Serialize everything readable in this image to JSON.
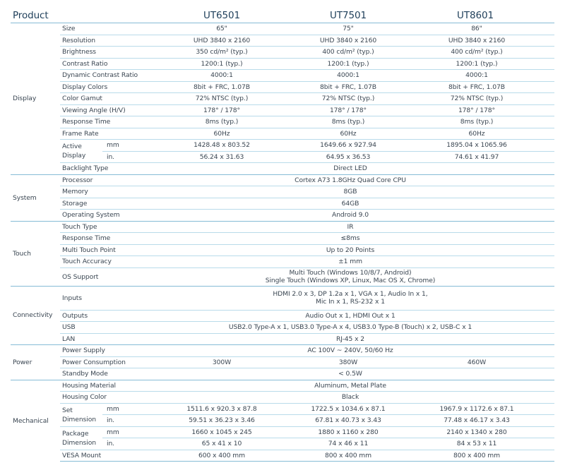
{
  "header": {
    "product_label": "Product",
    "models": [
      "UT6501",
      "UT7501",
      "UT8601"
    ]
  },
  "sections": [
    {
      "name": "Display",
      "rows": [
        {
          "label": "Size",
          "values": [
            "65\"",
            "75\"",
            "86\""
          ]
        },
        {
          "label": "Resolution",
          "values": [
            "UHD 3840 x 2160",
            "UHD 3840 x 2160",
            "UHD 3840 x 2160"
          ]
        },
        {
          "label": "Brightness",
          "values": [
            "350 cd/m² (typ.)",
            "400 cd/m² (typ.)",
            "400 cd/m² (typ.)"
          ]
        },
        {
          "label": "Contrast Ratio",
          "values": [
            "1200:1 (typ.)",
            "1200:1 (typ.)",
            "1200:1 (typ.)"
          ]
        },
        {
          "label": "Dynamic Contrast Ratio",
          "values": [
            "4000:1",
            "4000:1",
            "4000:1"
          ]
        },
        {
          "label": "Display Colors",
          "values": [
            "8bit + FRC, 1.07B",
            "8bit + FRC, 1.07B",
            "8bit + FRC, 1.07B"
          ]
        },
        {
          "label": "Color Gamut",
          "values": [
            "72% NTSC (typ.)",
            "72% NTSC (typ.)",
            "72% NTSC (typ.)"
          ]
        },
        {
          "label": "Viewing Angle (H/V)",
          "values": [
            "178° / 178°",
            "178° / 178°",
            "178° / 178°"
          ]
        },
        {
          "label": "Response Time",
          "values": [
            "8ms (typ.)",
            "8ms (typ.)",
            "8ms (typ.)"
          ]
        },
        {
          "label": "Frame Rate",
          "values": [
            "60Hz",
            "60Hz",
            "60Hz"
          ]
        },
        {
          "label": "Active Display",
          "subs": [
            {
              "unit": "mm",
              "values": [
                "1428.48 x 803.52",
                "1649.66 x 927.94",
                "1895.04 x 1065.96"
              ]
            },
            {
              "unit": "in.",
              "values": [
                "56.24 x 31.63",
                "64.95 x 36.53",
                "74.61 x 41.97"
              ]
            }
          ]
        },
        {
          "label": "Backlight Type",
          "values": [
            "Direct LED"
          ]
        }
      ]
    },
    {
      "name": "System",
      "rows": [
        {
          "label": "Processor",
          "values": [
            "Cortex A73 1.8GHz Quad Core CPU"
          ]
        },
        {
          "label": "Memory",
          "values": [
            "8GB"
          ]
        },
        {
          "label": "Storage",
          "values": [
            "64GB"
          ]
        },
        {
          "label": "Operating System",
          "values": [
            "Android 9.0"
          ]
        }
      ]
    },
    {
      "name": "Touch",
      "rows": [
        {
          "label": "Touch Type",
          "values": [
            "IR"
          ]
        },
        {
          "label": "Response Time",
          "values": [
            "≤8ms"
          ]
        },
        {
          "label": "Multi Touch Point",
          "values": [
            "Up to 20 Points"
          ]
        },
        {
          "label": "Touch Accuracy",
          "values": [
            "±1 mm"
          ]
        },
        {
          "label": "OS Support",
          "lines": 2,
          "values": [
            "Multi Touch (Windows 10/8/7, Android)\nSingle Touch (Windows XP, Linux, Mac OS X, Chrome)"
          ]
        }
      ]
    },
    {
      "name": "Connectivity",
      "rows": [
        {
          "label": "Inputs",
          "lines": 3,
          "values": [
            "HDMI 2.0 x 3, DP 1.2a x 1, VGA x 1, Audio In x 1,\nMic In x 1, RS-232 x 1"
          ]
        },
        {
          "label": "Outputs",
          "values": [
            "Audio Out x 1, HDMI Out x 1"
          ]
        },
        {
          "label": "USB",
          "values": [
            "USB2.0 Type-A x 1, USB3.0 Type-A x 4, USB3.0 Type-B (Touch) x 2, USB-C x 1"
          ]
        },
        {
          "label": "LAN",
          "values": [
            "RJ-45 x 2"
          ]
        }
      ]
    },
    {
      "name": "Power",
      "rows": [
        {
          "label": "Power Supply",
          "values": [
            "AC 100V ~ 240V, 50/60 Hz"
          ]
        },
        {
          "label": "Power Consumption",
          "values": [
            "300W",
            "380W",
            "460W"
          ]
        },
        {
          "label": "Standby Mode",
          "values": [
            "< 0.5W"
          ]
        }
      ]
    },
    {
      "name": "Mechanical",
      "rows": [
        {
          "label": "Housing Material",
          "values": [
            "Aluminum, Metal Plate"
          ]
        },
        {
          "label": "Housing Color",
          "values": [
            "Black"
          ]
        },
        {
          "label": "Set Dimension",
          "subs": [
            {
              "unit": "mm",
              "values": [
                "1511.6 x 920.3 x 87.8",
                "1722.5 x 1034.6 x 87.1",
                "1967.9 x 1172.6 x 87.1"
              ]
            },
            {
              "unit": "in.",
              "values": [
                "59.51 x 36.23 x 3.46",
                "67.81 x 40.73 x 3.43",
                "77.48 x 46.17 x 3.43"
              ]
            }
          ]
        },
        {
          "label": "Package Dimension",
          "subs": [
            {
              "unit": "mm",
              "values": [
                "1660 x 1045 x 245",
                "1880 x 1160 x 280",
                "2140 x 1340 x 280"
              ]
            },
            {
              "unit": "in.",
              "values": [
                "65 x 41 x 10",
                "74 x 46 x 11",
                "84 x 53 x 11"
              ]
            }
          ]
        },
        {
          "label": "VESA Mount",
          "values": [
            "600 x 400 mm",
            "800 x 400 mm",
            "800 x 400 mm"
          ]
        }
      ]
    }
  ]
}
